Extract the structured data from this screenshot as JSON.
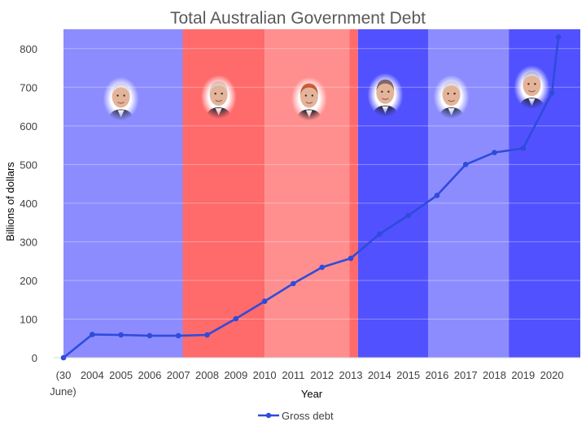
{
  "chart_data": {
    "type": "line",
    "title": "Total Australian Government Debt",
    "xlabel": "Year",
    "ylabel": "Billions of dollars",
    "ylim": [
      0,
      850
    ],
    "yticks": [
      0,
      100,
      200,
      300,
      400,
      500,
      600,
      700,
      800
    ],
    "grid": true,
    "legend_position": "bottom",
    "categories": [
      "(30 June)",
      "2004",
      "2005",
      "2006",
      "2007",
      "2008",
      "2009",
      "2010",
      "2011",
      "2012",
      "2013",
      "2014",
      "2015",
      "2016",
      "2017",
      "2018",
      "2019",
      "2020"
    ],
    "category_label_lines": [
      [
        "(30",
        "June)"
      ]
    ],
    "series": [
      {
        "name": "Gross debt",
        "color": "#2f4bdb",
        "x": [
          "(30 June)",
          "2004",
          "2005",
          "2006",
          "2007",
          "2008",
          "2009",
          "2010",
          "2011",
          "2012",
          "2013",
          "2014",
          "2015",
          "2016",
          "2017",
          "2018",
          "2019",
          "2020",
          "2020 end"
        ],
        "values": [
          0,
          60,
          59,
          57,
          57,
          59,
          101,
          146,
          192,
          234,
          257,
          320,
          368,
          420,
          500,
          531,
          542,
          685,
          830
        ]
      }
    ],
    "background_bands": [
      {
        "from": 0,
        "to": 4.15,
        "color": "#8c8cff",
        "portrait": "face-1"
      },
      {
        "from": 4.15,
        "to": 7.0,
        "color": "#ff6a6a",
        "portrait": "face-2"
      },
      {
        "from": 7.0,
        "to": 9.95,
        "color": "#ff8e8e",
        "portrait": "face-3"
      },
      {
        "from": 9.95,
        "to": 10.25,
        "color": "#ff6a6a"
      },
      {
        "from": 10.25,
        "to": 12.7,
        "color": "#5151ff",
        "portrait": "face-4"
      },
      {
        "from": 12.7,
        "to": 15.5,
        "color": "#8c8cff",
        "portrait": "face-5"
      },
      {
        "from": 15.5,
        "to": 18.7,
        "color": "#5151ff",
        "portrait": "face-6"
      }
    ],
    "portraits": [
      {
        "id": "face-1",
        "x": 2.0,
        "y": 670,
        "hair": "#e8e8e8",
        "suit": "#3a3f55"
      },
      {
        "id": "face-2",
        "x": 5.4,
        "y": 675,
        "hair": "#d9d4c8",
        "suit": "#2d2d3a"
      },
      {
        "id": "face-3",
        "x": 8.55,
        "y": 670,
        "hair": "#c2542a",
        "suit": "#1f1f2a"
      },
      {
        "id": "face-4",
        "x": 11.2,
        "y": 680,
        "hair": "#8a6a55",
        "suit": "#2a2a3a"
      },
      {
        "id": "face-5",
        "x": 13.5,
        "y": 675,
        "hair": "#e3e3e3",
        "suit": "#2b3a55"
      },
      {
        "id": "face-6",
        "x": 16.3,
        "y": 700,
        "hair": "#dadada",
        "suit": "#2a2f4a"
      }
    ]
  }
}
